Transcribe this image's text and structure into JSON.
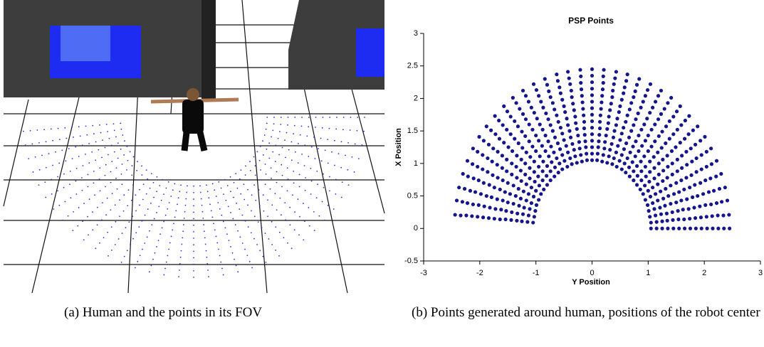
{
  "chart_data": {
    "type": "scatter",
    "title": "PSP Points",
    "x_label": "Y Position",
    "y_label": "X Position",
    "xlim": [
      -3,
      3
    ],
    "ylim": [
      -0.5,
      3
    ],
    "xticks": [
      -3,
      -2,
      -1,
      0,
      1,
      2,
      3
    ],
    "yticks": [
      -0.5,
      0,
      0.5,
      1,
      1.5,
      2,
      2.5,
      3
    ],
    "color": "#15158c",
    "x": [
      1.05,
      1.15,
      1.25,
      1.35,
      1.45,
      1.55,
      1.65,
      1.75,
      1.85,
      1.95,
      2.05,
      2.15,
      2.25,
      2.35,
      2.45,
      1.05,
      1.15,
      1.25,
      1.34,
      1.44,
      1.54,
      1.64,
      1.74,
      1.84,
      1.94,
      2.04,
      2.14,
      2.24,
      2.34,
      2.44,
      1.03,
      1.13,
      1.23,
      1.33,
      1.43,
      1.53,
      1.62,
      1.72,
      1.82,
      1.92,
      2.02,
      2.12,
      2.22,
      2.31,
      2.41,
      1.01,
      1.11,
      1.21,
      1.3,
      1.4,
      1.5,
      1.59,
      1.69,
      1.79,
      1.88,
      1.98,
      2.08,
      2.17,
      2.27,
      2.37,
      0.99,
      1.08,
      1.17,
      1.27,
      1.36,
      1.46,
      1.55,
      1.64,
      1.74,
      1.83,
      1.93,
      2.02,
      2.11,
      2.21,
      2.3,
      0.95,
      1.04,
      1.13,
      1.22,
      1.31,
      1.4,
      1.5,
      1.59,
      1.68,
      1.77,
      1.86,
      1.95,
      2.04,
      2.13,
      2.22,
      0.91,
      1,
      1.08,
      1.17,
      1.26,
      1.34,
      1.43,
      1.52,
      1.6,
      1.69,
      1.78,
      1.86,
      1.95,
      2.04,
      2.12,
      0.86,
      0.94,
      1.02,
      1.11,
      1.19,
      1.27,
      1.35,
      1.43,
      1.52,
      1.6,
      1.68,
      1.76,
      1.84,
      1.93,
      2.01,
      0.8,
      0.88,
      0.96,
      1.03,
      1.11,
      1.19,
      1.26,
      1.34,
      1.42,
      1.49,
      1.57,
      1.65,
      1.72,
      1.8,
      1.88,
      0.74,
      0.81,
      0.88,
      0.95,
      1.03,
      1.1,
      1.17,
      1.24,
      1.31,
      1.38,
      1.45,
      1.52,
      1.59,
      1.66,
      1.73,
      0.67,
      0.74,
      0.8,
      0.87,
      0.93,
      1,
      1.06,
      1.12,
      1.19,
      1.25,
      1.32,
      1.38,
      1.45,
      1.51,
      1.57,
      0.6,
      0.66,
      0.72,
      0.77,
      0.83,
      0.89,
      0.95,
      1,
      1.06,
      1.12,
      1.18,
      1.23,
      1.29,
      1.35,
      1.41,
      0.53,
      0.58,
      0.63,
      0.68,
      0.73,
      0.78,
      0.83,
      0.88,
      0.93,
      0.98,
      1.03,
      1.08,
      1.13,
      1.18,
      1.23,
      0.44,
      0.49,
      0.53,
      0.57,
      0.61,
      0.66,
      0.7,
      0.74,
      0.78,
      0.82,
      0.87,
      0.91,
      0.95,
      0.99,
      1.04,
      0.36,
      0.39,
      0.43,
      0.46,
      0.5,
      0.53,
      0.56,
      0.6,
      0.63,
      0.67,
      0.7,
      0.74,
      0.77,
      0.8,
      0.84,
      0.27,
      0.3,
      0.32,
      0.35,
      0.38,
      0.4,
      0.43,
      0.45,
      0.48,
      0.5,
      0.53,
      0.56,
      0.58,
      0.61,
      0.63,
      0.18,
      0.2,
      0.22,
      0.23,
      0.25,
      0.27,
      0.29,
      0.3,
      0.32,
      0.34,
      0.36,
      0.37,
      0.39,
      0.41,
      0.43,
      0.09,
      0.1,
      0.11,
      0.12,
      0.13,
      0.14,
      0.14,
      0.15,
      0.16,
      0.17,
      0.18,
      0.19,
      0.2,
      0.2,
      0.21,
      0,
      0,
      0,
      0,
      0,
      0,
      0,
      0,
      0,
      0,
      0,
      0,
      0,
      0,
      0,
      -0.09,
      -0.1,
      -0.11,
      -0.12,
      -0.13,
      -0.14,
      -0.14,
      -0.15,
      -0.16,
      -0.17,
      -0.18,
      -0.19,
      -0.2,
      -0.2,
      -0.21,
      -0.18,
      -0.2,
      -0.22,
      -0.23,
      -0.25,
      -0.27,
      -0.29,
      -0.3,
      -0.32,
      -0.34,
      -0.36,
      -0.37,
      -0.39,
      -0.41,
      -0.43,
      -0.27,
      -0.3,
      -0.32,
      -0.35,
      -0.38,
      -0.4,
      -0.43,
      -0.45,
      -0.48,
      -0.5,
      -0.53,
      -0.56,
      -0.58,
      -0.61,
      -0.63,
      -0.36,
      -0.39,
      -0.43,
      -0.46,
      -0.5,
      -0.53,
      -0.56,
      -0.6,
      -0.63,
      -0.67,
      -0.7,
      -0.74,
      -0.77,
      -0.8,
      -0.84,
      -0.44,
      -0.49,
      -0.53,
      -0.57,
      -0.61,
      -0.66,
      -0.7,
      -0.74,
      -0.78,
      -0.82,
      -0.87,
      -0.91,
      -0.95,
      -0.99,
      -1.04,
      -0.53,
      -0.58,
      -0.63,
      -0.68,
      -0.73,
      -0.78,
      -0.83,
      -0.88,
      -0.93,
      -0.98,
      -1.03,
      -1.08,
      -1.13,
      -1.18,
      -1.23,
      -0.6,
      -0.66,
      -0.72,
      -0.77,
      -0.83,
      -0.89,
      -0.95,
      -1,
      -1.06,
      -1.12,
      -1.18,
      -1.23,
      -1.29,
      -1.35,
      -1.41,
      -0.67,
      -0.74,
      -0.8,
      -0.87,
      -0.93,
      -1,
      -1.06,
      -1.12,
      -1.19,
      -1.25,
      -1.32,
      -1.38,
      -1.45,
      -1.51,
      -1.57,
      -0.74,
      -0.81,
      -0.88,
      -0.95,
      -1.03,
      -1.1,
      -1.17,
      -1.24,
      -1.31,
      -1.38,
      -1.45,
      -1.52,
      -1.59,
      -1.66,
      -1.73,
      -0.8,
      -0.88,
      -0.96,
      -1.03,
      -1.11,
      -1.19,
      -1.26,
      -1.34,
      -1.42,
      -1.49,
      -1.57,
      -1.65,
      -1.72,
      -1.8,
      -1.88,
      -0.86,
      -0.94,
      -1.02,
      -1.11,
      -1.19,
      -1.27,
      -1.35,
      -1.43,
      -1.52,
      -1.6,
      -1.68,
      -1.76,
      -1.84,
      -1.93,
      -2.01,
      -0.91,
      -1,
      -1.08,
      -1.17,
      -1.26,
      -1.34,
      -1.43,
      -1.52,
      -1.6,
      -1.69,
      -1.78,
      -1.86,
      -1.95,
      -2.04,
      -2.12,
      -0.95,
      -1.04,
      -1.13,
      -1.22,
      -1.31,
      -1.4,
      -1.5,
      -1.59,
      -1.68,
      -1.77,
      -1.86,
      -1.95,
      -2.04,
      -2.13,
      -2.22,
      -0.99,
      -1.08,
      -1.17,
      -1.27,
      -1.36,
      -1.46,
      -1.55,
      -1.64,
      -1.74,
      -1.83,
      -1.93,
      -2.02,
      -2.11,
      -2.21,
      -2.3,
      -1.01,
      -1.11,
      -1.21,
      -1.3,
      -1.4,
      -1.5,
      -1.59,
      -1.69,
      -1.79,
      -1.88,
      -1.98,
      -2.08,
      -2.17,
      -2.27,
      -2.37,
      -1.03,
      -1.13,
      -1.23,
      -1.33,
      -1.43,
      -1.53,
      -1.62,
      -1.72,
      -1.82,
      -1.92,
      -2.02,
      -2.12,
      -2.22,
      -2.31,
      -2.41,
      -1.05,
      -1.15,
      -1.25,
      -1.34,
      -1.44,
      -1.54,
      -1.64,
      -1.74,
      -1.84,
      -1.94,
      -2.04,
      -2.14,
      -2.24,
      -2.34,
      -2.44
    ],
    "values": [
      0,
      0,
      0,
      0,
      0,
      0,
      0,
      0,
      0,
      0,
      0,
      0,
      0,
      0,
      0,
      0.09,
      0.1,
      0.11,
      0.12,
      0.13,
      0.14,
      0.14,
      0.15,
      0.16,
      0.17,
      0.18,
      0.19,
      0.2,
      0.2,
      0.21,
      0.18,
      0.2,
      0.22,
      0.23,
      0.25,
      0.27,
      0.29,
      0.3,
      0.32,
      0.34,
      0.36,
      0.37,
      0.39,
      0.41,
      0.43,
      0.27,
      0.3,
      0.32,
      0.35,
      0.38,
      0.4,
      0.43,
      0.45,
      0.48,
      0.5,
      0.53,
      0.56,
      0.58,
      0.61,
      0.63,
      0.36,
      0.39,
      0.43,
      0.46,
      0.5,
      0.53,
      0.56,
      0.6,
      0.63,
      0.67,
      0.7,
      0.74,
      0.77,
      0.8,
      0.84,
      0.44,
      0.49,
      0.53,
      0.57,
      0.61,
      0.66,
      0.7,
      0.74,
      0.78,
      0.82,
      0.87,
      0.91,
      0.95,
      0.99,
      1.04,
      0.53,
      0.58,
      0.63,
      0.68,
      0.73,
      0.78,
      0.83,
      0.88,
      0.93,
      0.98,
      1.03,
      1.08,
      1.13,
      1.18,
      1.23,
      0.6,
      0.66,
      0.72,
      0.77,
      0.83,
      0.89,
      0.95,
      1,
      1.06,
      1.12,
      1.18,
      1.23,
      1.29,
      1.35,
      1.41,
      0.67,
      0.74,
      0.8,
      0.87,
      0.93,
      1,
      1.06,
      1.12,
      1.19,
      1.25,
      1.32,
      1.38,
      1.45,
      1.51,
      1.57,
      0.74,
      0.81,
      0.88,
      0.95,
      1.03,
      1.1,
      1.17,
      1.24,
      1.31,
      1.38,
      1.45,
      1.52,
      1.59,
      1.66,
      1.73,
      0.8,
      0.88,
      0.96,
      1.03,
      1.11,
      1.19,
      1.26,
      1.34,
      1.42,
      1.49,
      1.57,
      1.65,
      1.72,
      1.8,
      1.88,
      0.86,
      0.94,
      1.02,
      1.11,
      1.19,
      1.27,
      1.35,
      1.43,
      1.52,
      1.6,
      1.68,
      1.76,
      1.84,
      1.93,
      2.01,
      0.91,
      1,
      1.08,
      1.17,
      1.26,
      1.34,
      1.43,
      1.52,
      1.6,
      1.69,
      1.78,
      1.86,
      1.95,
      2.04,
      2.12,
      0.95,
      1.04,
      1.13,
      1.22,
      1.31,
      1.4,
      1.5,
      1.59,
      1.68,
      1.77,
      1.86,
      1.95,
      2.04,
      2.13,
      2.22,
      0.99,
      1.08,
      1.17,
      1.27,
      1.36,
      1.46,
      1.55,
      1.64,
      1.74,
      1.83,
      1.93,
      2.02,
      2.11,
      2.21,
      2.3,
      1.01,
      1.11,
      1.21,
      1.3,
      1.4,
      1.5,
      1.59,
      1.69,
      1.79,
      1.88,
      1.98,
      2.08,
      2.17,
      2.27,
      2.37,
      1.03,
      1.13,
      1.23,
      1.33,
      1.43,
      1.53,
      1.62,
      1.72,
      1.82,
      1.92,
      2.02,
      2.12,
      2.22,
      2.31,
      2.41,
      1.05,
      1.15,
      1.25,
      1.34,
      1.44,
      1.54,
      1.64,
      1.74,
      1.84,
      1.94,
      2.04,
      2.14,
      2.24,
      2.34,
      2.44,
      1.05,
      1.15,
      1.25,
      1.35,
      1.45,
      1.55,
      1.65,
      1.75,
      1.85,
      1.95,
      2.05,
      2.15,
      2.25,
      2.35,
      2.45,
      1.05,
      1.15,
      1.25,
      1.34,
      1.44,
      1.54,
      1.64,
      1.74,
      1.84,
      1.94,
      2.04,
      2.14,
      2.24,
      2.34,
      2.44,
      1.03,
      1.13,
      1.23,
      1.33,
      1.43,
      1.53,
      1.62,
      1.72,
      1.82,
      1.92,
      2.02,
      2.12,
      2.22,
      2.31,
      2.41,
      1.01,
      1.11,
      1.21,
      1.3,
      1.4,
      1.5,
      1.59,
      1.69,
      1.79,
      1.88,
      1.98,
      2.08,
      2.17,
      2.27,
      2.37,
      0.99,
      1.08,
      1.17,
      1.27,
      1.36,
      1.46,
      1.55,
      1.64,
      1.74,
      1.83,
      1.93,
      2.02,
      2.11,
      2.21,
      2.3,
      0.95,
      1.04,
      1.13,
      1.22,
      1.31,
      1.4,
      1.5,
      1.59,
      1.68,
      1.77,
      1.86,
      1.95,
      2.04,
      2.13,
      2.22,
      0.91,
      1,
      1.08,
      1.17,
      1.26,
      1.34,
      1.43,
      1.52,
      1.6,
      1.69,
      1.78,
      1.86,
      1.95,
      2.04,
      2.12,
      0.86,
      0.94,
      1.02,
      1.11,
      1.19,
      1.27,
      1.35,
      1.43,
      1.52,
      1.6,
      1.68,
      1.76,
      1.84,
      1.93,
      2.01,
      0.8,
      0.88,
      0.96,
      1.03,
      1.11,
      1.19,
      1.26,
      1.34,
      1.42,
      1.49,
      1.57,
      1.65,
      1.72,
      1.8,
      1.88,
      0.74,
      0.81,
      0.88,
      0.95,
      1.03,
      1.1,
      1.17,
      1.24,
      1.31,
      1.38,
      1.45,
      1.52,
      1.59,
      1.66,
      1.73,
      0.67,
      0.74,
      0.8,
      0.87,
      0.93,
      1,
      1.06,
      1.12,
      1.19,
      1.25,
      1.32,
      1.38,
      1.45,
      1.51,
      1.57,
      0.6,
      0.66,
      0.72,
      0.77,
      0.83,
      0.89,
      0.95,
      1,
      1.06,
      1.12,
      1.18,
      1.23,
      1.29,
      1.35,
      1.41,
      0.53,
      0.58,
      0.63,
      0.68,
      0.73,
      0.78,
      0.83,
      0.88,
      0.93,
      0.98,
      1.03,
      1.08,
      1.13,
      1.18,
      1.23,
      0.44,
      0.49,
      0.53,
      0.57,
      0.61,
      0.66,
      0.7,
      0.74,
      0.78,
      0.82,
      0.87,
      0.91,
      0.95,
      0.99,
      1.04,
      0.36,
      0.39,
      0.43,
      0.46,
      0.5,
      0.53,
      0.56,
      0.6,
      0.63,
      0.67,
      0.7,
      0.74,
      0.77,
      0.8,
      0.84,
      0.27,
      0.3,
      0.32,
      0.35,
      0.38,
      0.4,
      0.43,
      0.45,
      0.48,
      0.5,
      0.53,
      0.56,
      0.58,
      0.61,
      0.63,
      0.18,
      0.2,
      0.22,
      0.23,
      0.25,
      0.27,
      0.29,
      0.3,
      0.32,
      0.34,
      0.36,
      0.37,
      0.39,
      0.41,
      0.43,
      0.09,
      0.1,
      0.11,
      0.12,
      0.13,
      0.14,
      0.14,
      0.15,
      0.16,
      0.17,
      0.18,
      0.19,
      0.2,
      0.2,
      0.21
    ]
  },
  "captions": {
    "a": "(a) Human and the points in its FOV",
    "b": "(b) Points generated around human, positions of the robot center"
  }
}
